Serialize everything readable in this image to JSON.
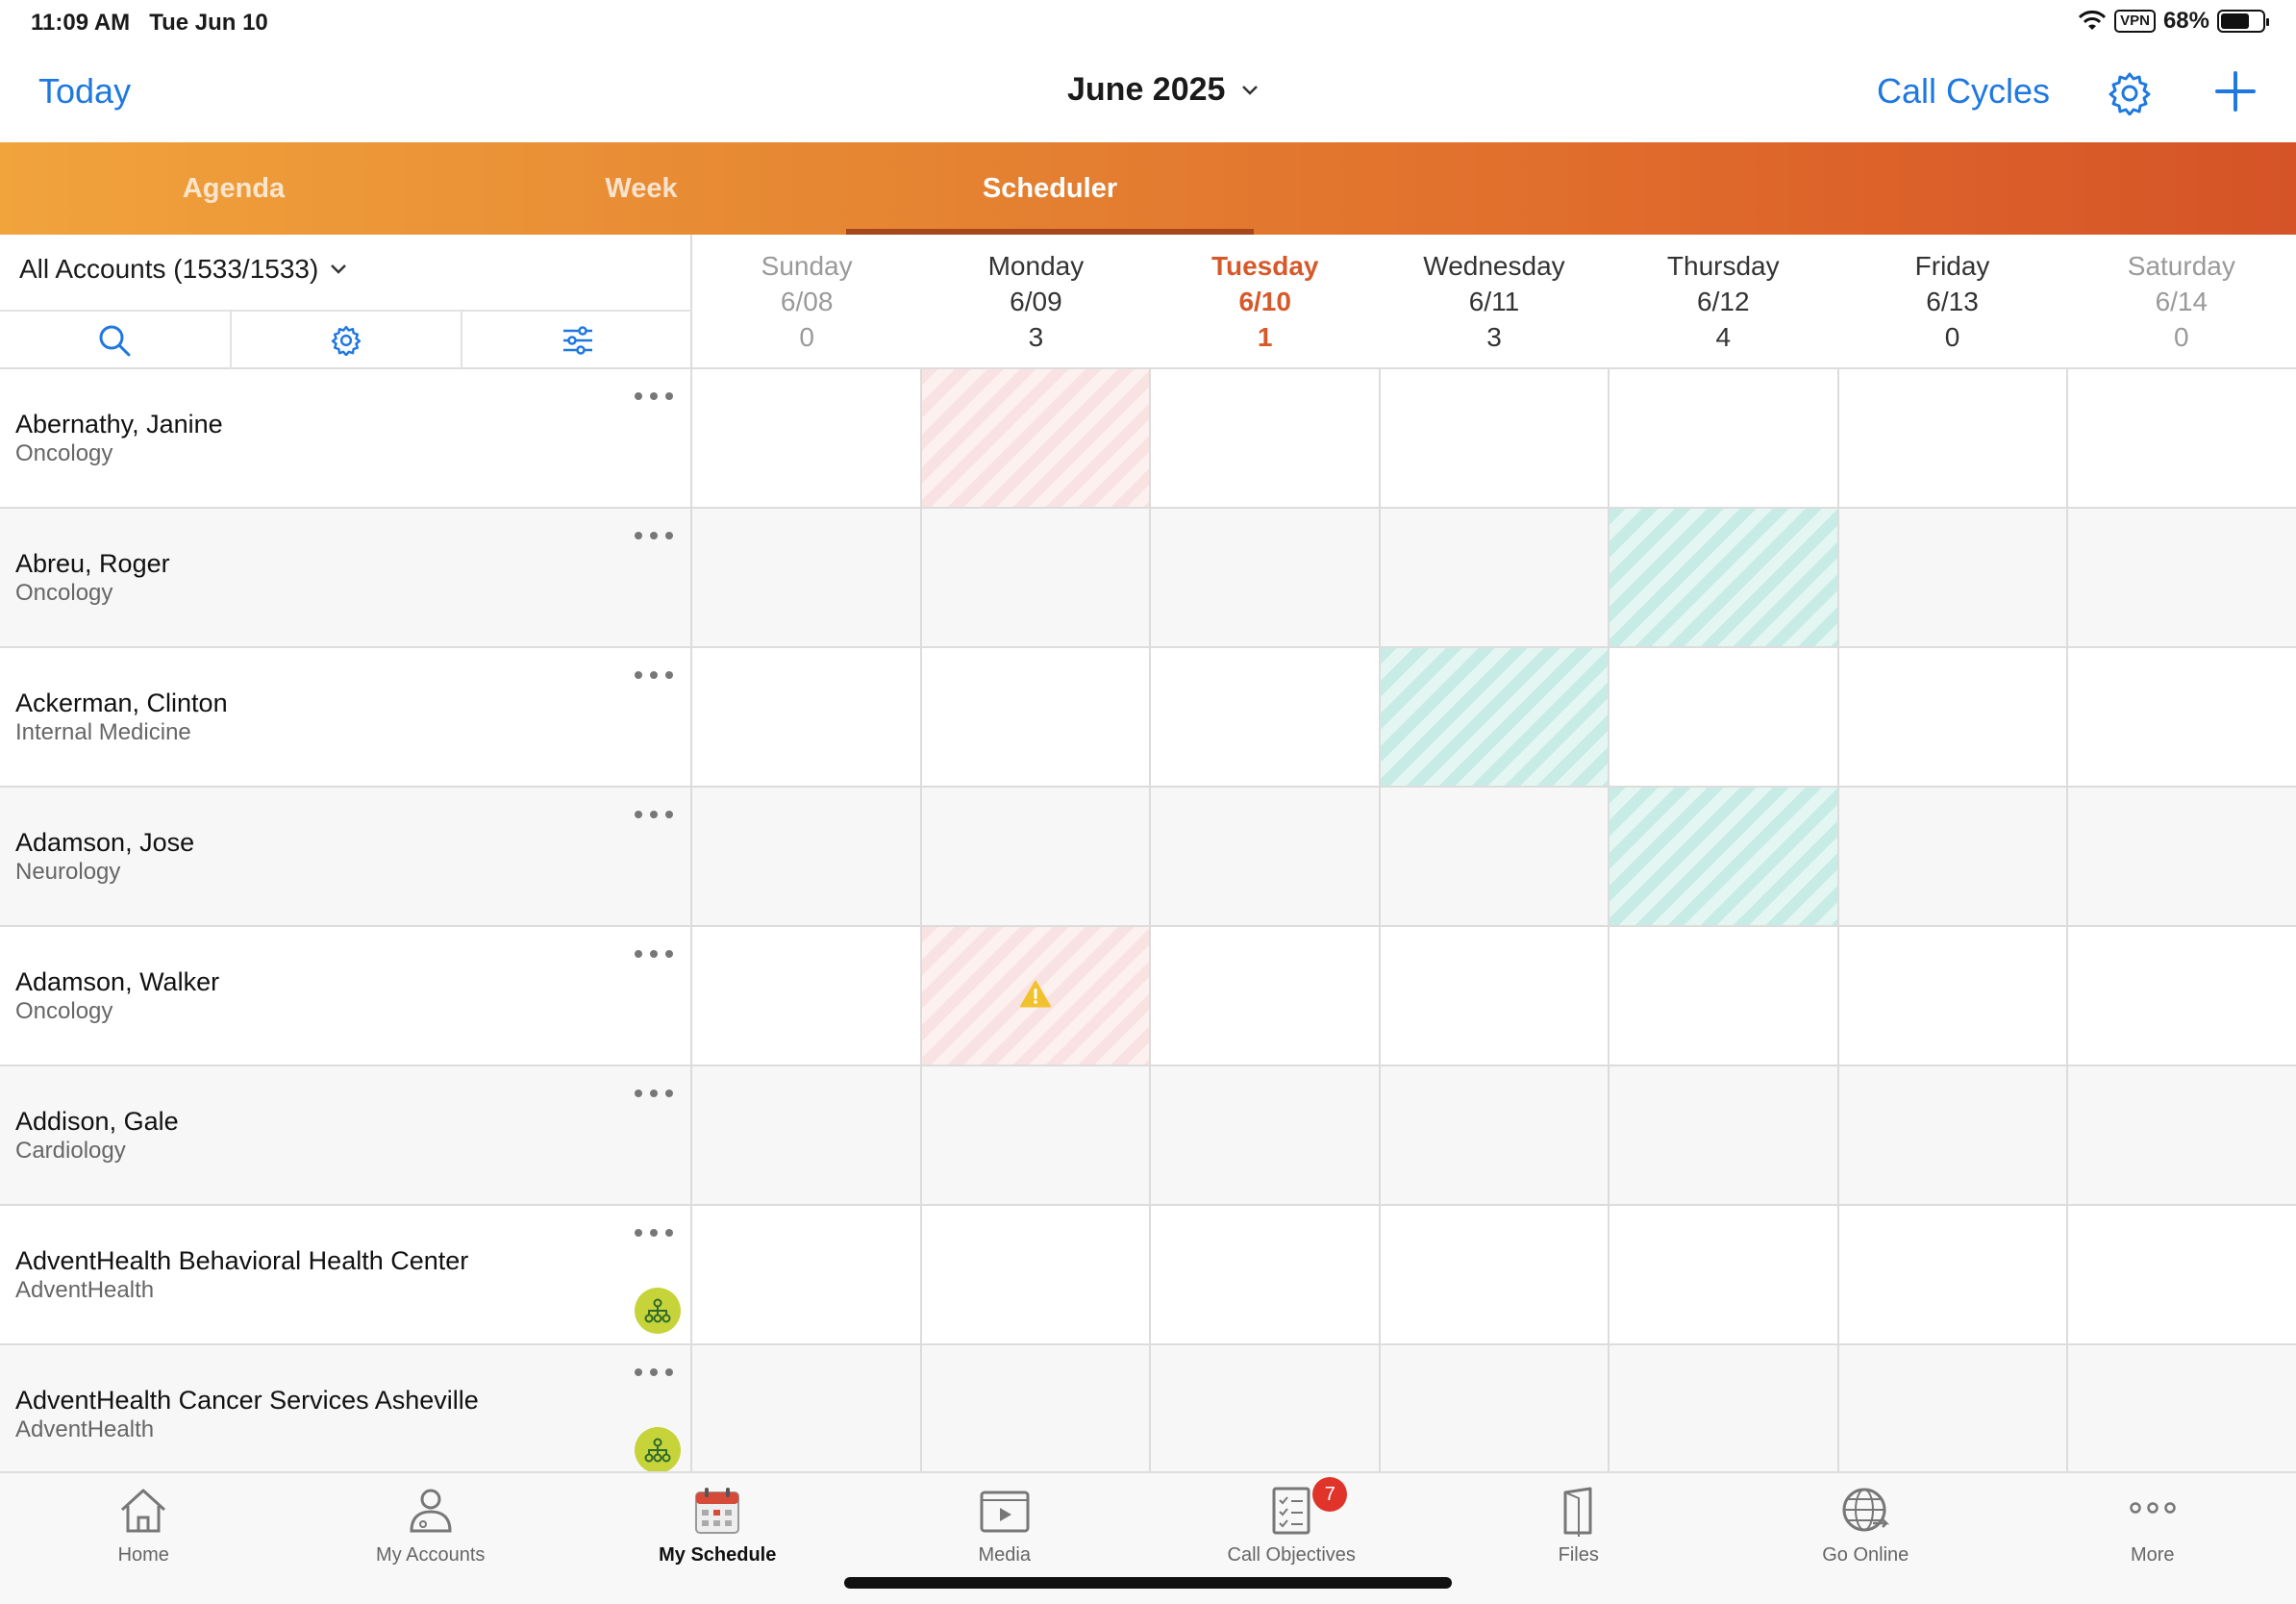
{
  "status": {
    "time": "11:09 AM",
    "date": "Tue Jun 10",
    "vpn": "VPN",
    "battery": "68%",
    "battery_level": 0.68
  },
  "nav": {
    "today_label": "Today",
    "month_label": "June 2025",
    "call_cycles_label": "Call Cycles"
  },
  "tabs": [
    {
      "label": "Agenda",
      "active": false
    },
    {
      "label": "Week",
      "active": false
    },
    {
      "label": "Scheduler",
      "active": true
    }
  ],
  "filter": {
    "label": "All Accounts (1533/1533)"
  },
  "days": [
    {
      "name": "Sunday",
      "date": "6/08",
      "count": "0",
      "style": "weekend"
    },
    {
      "name": "Monday",
      "date": "6/09",
      "count": "3",
      "style": "normal"
    },
    {
      "name": "Tuesday",
      "date": "6/10",
      "count": "1",
      "style": "today"
    },
    {
      "name": "Wednesday",
      "date": "6/11",
      "count": "3",
      "style": "normal"
    },
    {
      "name": "Thursday",
      "date": "6/12",
      "count": "4",
      "style": "normal"
    },
    {
      "name": "Friday",
      "date": "6/13",
      "count": "0",
      "style": "normal"
    },
    {
      "name": "Saturday",
      "date": "6/14",
      "count": "0",
      "style": "weekend"
    }
  ],
  "accounts": [
    {
      "name": "Abernathy, Janine",
      "specialty": "Oncology",
      "hierarchy": false,
      "cells": [
        "",
        "pink",
        "",
        "",
        "",
        "",
        ""
      ],
      "warning_day": -1
    },
    {
      "name": "Abreu, Roger",
      "specialty": "Oncology",
      "hierarchy": false,
      "cells": [
        "",
        "",
        "",
        "",
        "teal",
        "",
        ""
      ],
      "warning_day": -1
    },
    {
      "name": "Ackerman, Clinton",
      "specialty": "Internal Medicine",
      "hierarchy": false,
      "cells": [
        "",
        "",
        "",
        "teal",
        "",
        "",
        ""
      ],
      "warning_day": -1
    },
    {
      "name": "Adamson, Jose",
      "specialty": "Neurology",
      "hierarchy": false,
      "cells": [
        "",
        "",
        "",
        "",
        "teal",
        "",
        ""
      ],
      "warning_day": -1
    },
    {
      "name": "Adamson, Walker",
      "specialty": "Oncology",
      "hierarchy": false,
      "cells": [
        "",
        "pink",
        "",
        "",
        "",
        "",
        ""
      ],
      "warning_day": 1
    },
    {
      "name": "Addison, Gale",
      "specialty": "Cardiology",
      "hierarchy": false,
      "cells": [
        "",
        "",
        "",
        "",
        "",
        "",
        ""
      ],
      "warning_day": -1
    },
    {
      "name": "AdventHealth Behavioral Health Center",
      "specialty": "AdventHealth",
      "hierarchy": true,
      "cells": [
        "",
        "",
        "",
        "",
        "",
        "",
        ""
      ],
      "warning_day": -1
    },
    {
      "name": "AdventHealth Cancer Services Asheville",
      "specialty": "AdventHealth",
      "hierarchy": true,
      "cells": [
        "",
        "",
        "",
        "",
        "",
        "",
        ""
      ],
      "warning_day": -1
    }
  ],
  "bottom_nav": [
    {
      "label": "Home",
      "icon": "home-icon",
      "active": false,
      "badge": ""
    },
    {
      "label": "My Accounts",
      "icon": "person-icon",
      "active": false,
      "badge": ""
    },
    {
      "label": "My Schedule",
      "icon": "calendar-icon",
      "active": true,
      "badge": ""
    },
    {
      "label": "Media",
      "icon": "media-icon",
      "active": false,
      "badge": ""
    },
    {
      "label": "Call Objectives",
      "icon": "checklist-icon",
      "active": false,
      "badge": "7"
    },
    {
      "label": "Files",
      "icon": "files-icon",
      "active": false,
      "badge": ""
    },
    {
      "label": "Go Online",
      "icon": "globe-icon",
      "active": false,
      "badge": ""
    },
    {
      "label": "More",
      "icon": "more-icon",
      "active": false,
      "badge": ""
    }
  ],
  "colors": {
    "accent": "#1f78e0",
    "today": "#d6592a",
    "pink_cell": "#f9e3e2",
    "teal_cell": "#c7ece5",
    "badge": "#e0342b",
    "hierarchy_badge": "#c6d43a"
  }
}
